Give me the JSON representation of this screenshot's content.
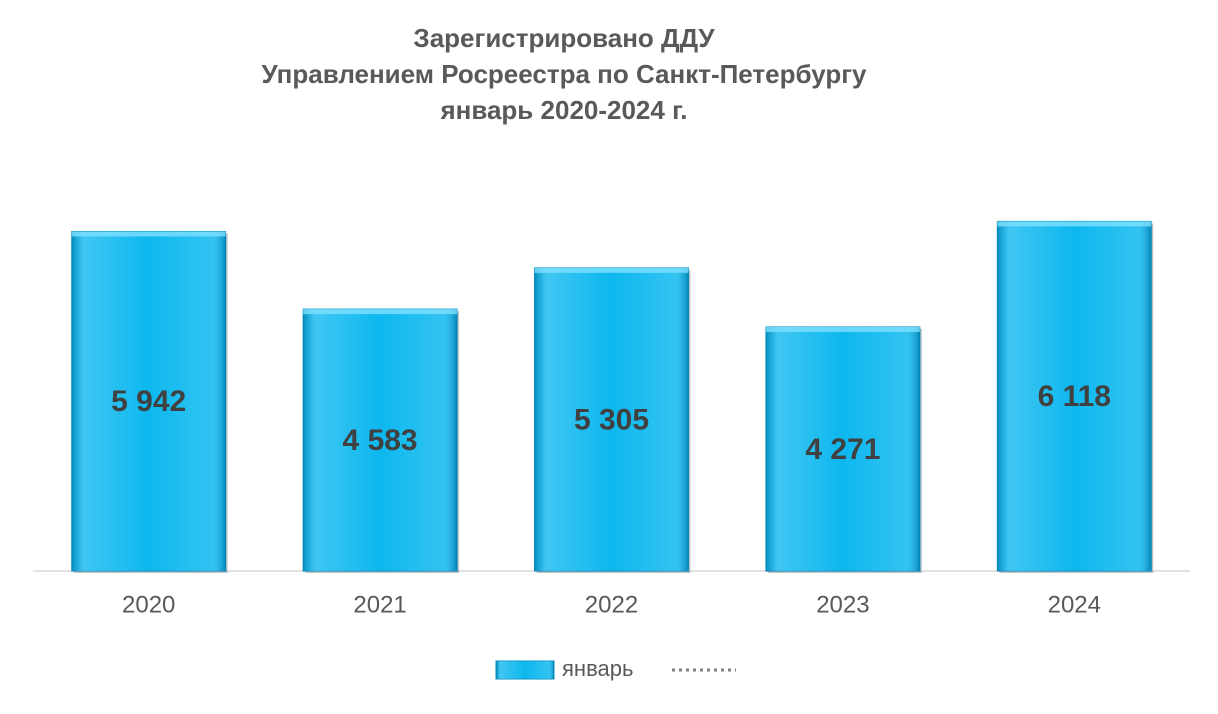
{
  "chart_data": {
    "type": "bar",
    "title": [
      "Зарегистрировано ДДУ",
      "Управлением Росреестра по Санкт-Петербургу",
      "январь 2020-2024 г."
    ],
    "categories": [
      "2020",
      "2021",
      "2022",
      "2023",
      "2024"
    ],
    "series": [
      {
        "name": "январь",
        "color": "#00b4ee",
        "values": [
          5942,
          4583,
          5305,
          4271,
          6118
        ],
        "value_labels": [
          "5 942",
          "4 583",
          "5 305",
          "4 271",
          "6 118"
        ]
      }
    ],
    "ylim": [
      0,
      7000
    ],
    "trendline": "polynomial",
    "legend": "bottom"
  }
}
